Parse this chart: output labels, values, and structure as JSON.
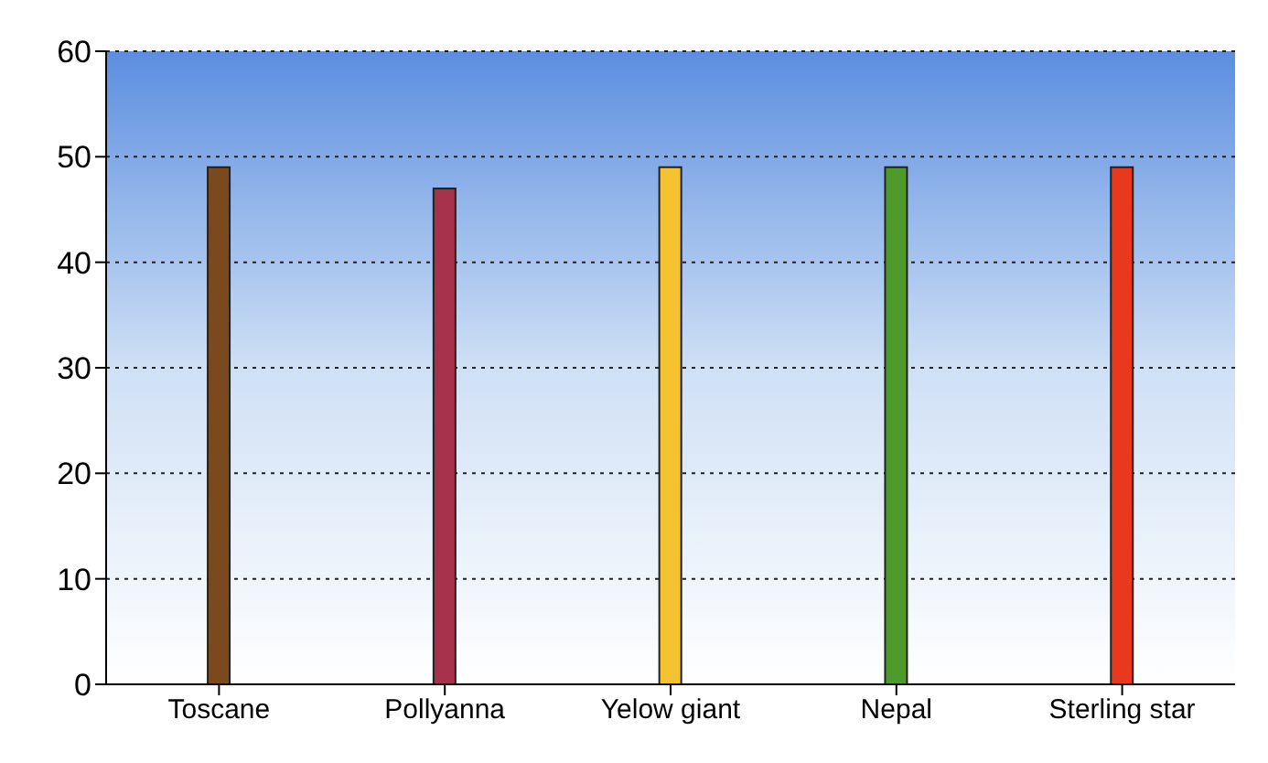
{
  "chart_data": {
    "type": "bar",
    "categories": [
      "Toscane",
      "Pollyanna",
      "Yelow giant",
      "Nepal",
      "Sterling star"
    ],
    "values": [
      49,
      47,
      49,
      49,
      49
    ],
    "colors": [
      "#7a4a1e",
      "#a5324a",
      "#f5c232",
      "#4e9a2a",
      "#e8391e"
    ],
    "ylim": [
      0,
      60
    ],
    "yticks": [
      0,
      10,
      20,
      30,
      40,
      50,
      60
    ],
    "grid": "y"
  }
}
